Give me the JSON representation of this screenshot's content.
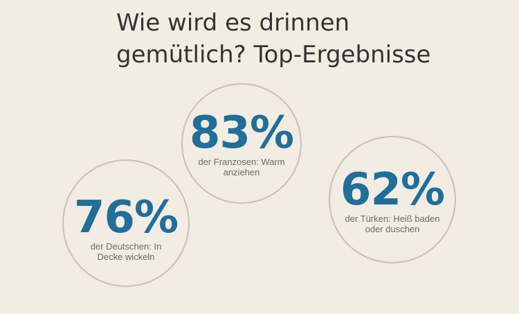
{
  "title": {
    "line1": "Wie wird es drinnen",
    "line2": "gemütlich? Top-Ergebnisse"
  },
  "colors": {
    "background": "#f3ece2",
    "percent": "#1f6f9a",
    "text": "#6a6a6a",
    "title": "#333333",
    "circle_border": "#c9bfbb"
  },
  "stats": [
    {
      "percent": "83%",
      "desc_line1": "der Franzosen: Warm",
      "desc_line2": "anziehen"
    },
    {
      "percent": "62%",
      "desc_line1": "der Türken: Heiß baden",
      "desc_line2": "oder duschen"
    },
    {
      "percent": "76%",
      "desc_line1": "der Deutschen: In",
      "desc_line2": "Decke wickeln"
    }
  ]
}
